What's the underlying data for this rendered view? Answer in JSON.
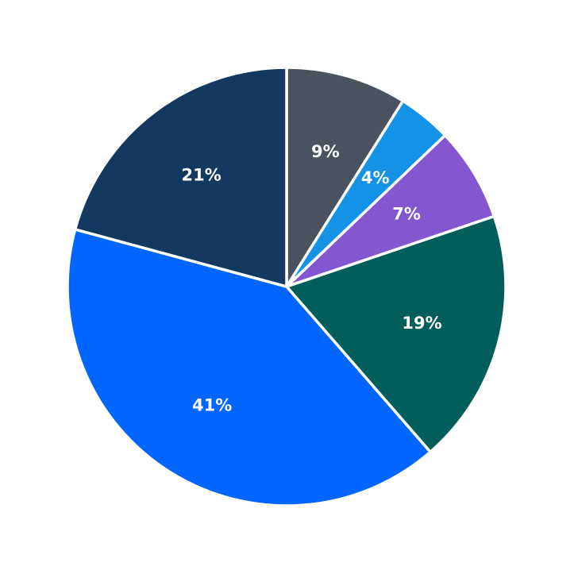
{
  "chart_data": {
    "type": "pie",
    "start": "12 o'clock",
    "direction": "clockwise",
    "slices": [
      {
        "value": 9,
        "label": "9%",
        "color": "#4a5260"
      },
      {
        "value": 4,
        "label": "4%",
        "color": "#1492e6"
      },
      {
        "value": 7,
        "label": "7%",
        "color": "#8457d0"
      },
      {
        "value": 19,
        "label": "19%",
        "color": "#025e5a"
      },
      {
        "value": 41,
        "label": "41%",
        "color": "#0066ff"
      },
      {
        "value": 21,
        "label": "21%",
        "color": "#143961"
      }
    ]
  }
}
